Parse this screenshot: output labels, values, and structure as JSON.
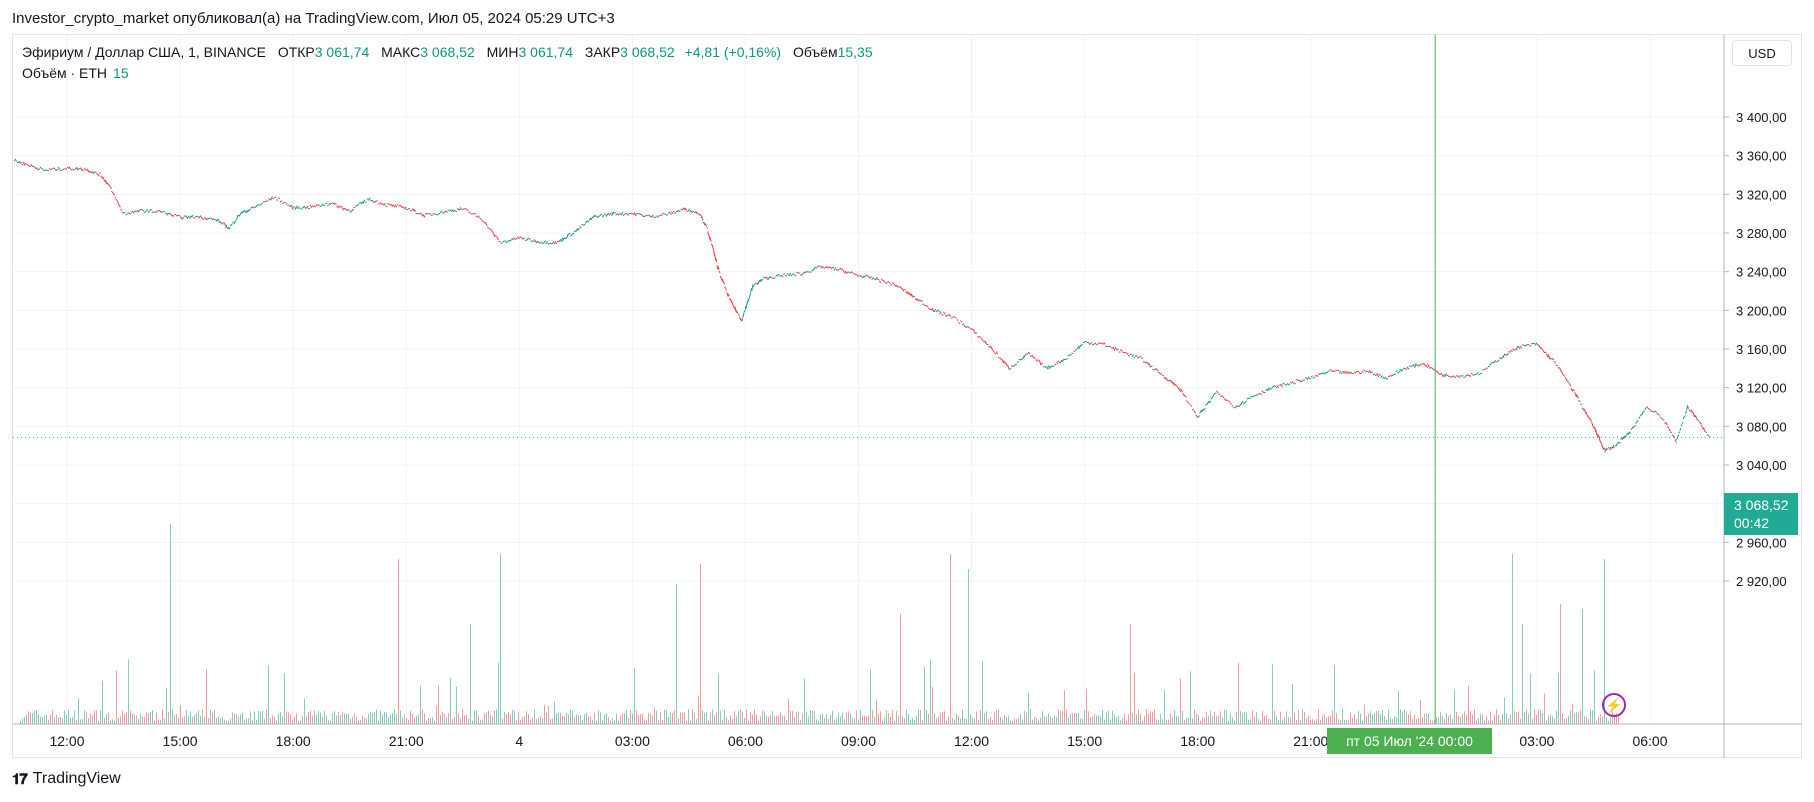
{
  "publisher_line": "Investor_crypto_market опубликовал(а) на TradingView.com, Июл 05, 2024 05:29 UTC+3",
  "legend": {
    "symbol": "Эфириум / Доллар США, 1, BINANCE",
    "open_label": "ОТКР",
    "open": "3 061,74",
    "high_label": "МАКС",
    "high": "3 068,52",
    "low_label": "МИН",
    "low": "3 061,74",
    "close_label": "ЗАКР",
    "close": "3 068,52",
    "change": "+4,81 (+0,16%)",
    "volume_label": "Объём",
    "volume": "15,35"
  },
  "volume_legend": {
    "label": "Объём · ETH",
    "value": "15"
  },
  "currency_button": "USD",
  "last_price": {
    "price": "3 068,52",
    "countdown": "00:42"
  },
  "crosshair_time_label": "пт 05 Июл '24   00:00",
  "logo_text": "TradingView",
  "colors": {
    "up": "#089981",
    "down": "#f23645",
    "price_badge": "#22ab94",
    "crosshair": "#4caf50"
  },
  "chart_data": {
    "type": "candlestick_line",
    "instrument": "ETH/USD",
    "timeframe": "1",
    "exchange": "BINANCE",
    "y_ticks": [
      3400,
      3360,
      3320,
      3280,
      3240,
      3200,
      3160,
      3120,
      3080,
      3040,
      3000,
      2960,
      2920
    ],
    "y_tick_labels": [
      "3 400,00",
      "3 360,00",
      "3 320,00",
      "3 280,00",
      "3 240,00",
      "3 200,00",
      "3 160,00",
      "3 120,00",
      "3 080,00",
      "3 040,00",
      "3 000,00",
      "2 960,00",
      "2 920,00"
    ],
    "x_ticks": [
      "12:00",
      "15:00",
      "18:00",
      "21:00",
      "4",
      "03:00",
      "06:00",
      "09:00",
      "12:00",
      "15:00",
      "18:00",
      "21:00",
      "03:00",
      "06:00"
    ],
    "x_hours_from_start": [
      0,
      3,
      6,
      9,
      12,
      15,
      18,
      21,
      24,
      27,
      30,
      33,
      39,
      42
    ],
    "price_path": [
      [
        -1.4,
        3355
      ],
      [
        -1.0,
        3350
      ],
      [
        -0.6,
        3345
      ],
      [
        0.0,
        3347
      ],
      [
        0.5,
        3346
      ],
      [
        0.9,
        3340
      ],
      [
        1.1,
        3330
      ],
      [
        1.5,
        3300
      ],
      [
        2.0,
        3303
      ],
      [
        2.5,
        3302
      ],
      [
        3.0,
        3296
      ],
      [
        3.5,
        3297
      ],
      [
        4.0,
        3293
      ],
      [
        4.3,
        3285
      ],
      [
        4.6,
        3300
      ],
      [
        5.0,
        3307
      ],
      [
        5.5,
        3317
      ],
      [
        6.0,
        3306
      ],
      [
        6.5,
        3307
      ],
      [
        7.0,
        3311
      ],
      [
        7.5,
        3303
      ],
      [
        8.0,
        3315
      ],
      [
        8.5,
        3309
      ],
      [
        9.0,
        3306
      ],
      [
        9.5,
        3298
      ],
      [
        10.0,
        3302
      ],
      [
        10.5,
        3305
      ],
      [
        11.0,
        3295
      ],
      [
        11.5,
        3270
      ],
      [
        12.0,
        3275
      ],
      [
        12.5,
        3271
      ],
      [
        13.0,
        3270
      ],
      [
        13.5,
        3282
      ],
      [
        14.0,
        3297
      ],
      [
        14.5,
        3300
      ],
      [
        15.0,
        3300
      ],
      [
        15.5,
        3297
      ],
      [
        16.0,
        3300
      ],
      [
        16.4,
        3305
      ],
      [
        16.8,
        3300
      ],
      [
        17.0,
        3283
      ],
      [
        17.3,
        3240
      ],
      [
        17.6,
        3210
      ],
      [
        17.9,
        3190
      ],
      [
        18.2,
        3225
      ],
      [
        18.5,
        3233
      ],
      [
        19.0,
        3236
      ],
      [
        19.5,
        3238
      ],
      [
        20.0,
        3245
      ],
      [
        20.5,
        3242
      ],
      [
        21.0,
        3236
      ],
      [
        21.5,
        3232
      ],
      [
        22.0,
        3226
      ],
      [
        22.5,
        3213
      ],
      [
        23.0,
        3200
      ],
      [
        23.5,
        3193
      ],
      [
        24.0,
        3180
      ],
      [
        24.5,
        3162
      ],
      [
        25.0,
        3140
      ],
      [
        25.5,
        3155
      ],
      [
        26.0,
        3140
      ],
      [
        26.5,
        3150
      ],
      [
        27.0,
        3167
      ],
      [
        27.5,
        3165
      ],
      [
        28.0,
        3157
      ],
      [
        28.5,
        3150
      ],
      [
        29.0,
        3135
      ],
      [
        29.5,
        3120
      ],
      [
        30.0,
        3090
      ],
      [
        30.5,
        3115
      ],
      [
        31.0,
        3100
      ],
      [
        31.5,
        3112
      ],
      [
        32.0,
        3120
      ],
      [
        32.5,
        3125
      ],
      [
        33.0,
        3130
      ],
      [
        33.5,
        3137
      ],
      [
        34.0,
        3135
      ],
      [
        34.5,
        3137
      ],
      [
        35.0,
        3130
      ],
      [
        35.5,
        3140
      ],
      [
        36.0,
        3145
      ],
      [
        36.5,
        3133
      ],
      [
        37.0,
        3132
      ],
      [
        37.5,
        3135
      ],
      [
        38.0,
        3150
      ],
      [
        38.5,
        3162
      ],
      [
        39.0,
        3165
      ],
      [
        39.5,
        3145
      ],
      [
        40.0,
        3115
      ],
      [
        40.5,
        3080
      ],
      [
        40.8,
        3055
      ],
      [
        41.1,
        3060
      ],
      [
        41.5,
        3075
      ],
      [
        41.9,
        3100
      ],
      [
        42.3,
        3090
      ],
      [
        42.7,
        3065
      ],
      [
        43.0,
        3100
      ],
      [
        43.3,
        3085
      ],
      [
        43.6,
        3068
      ]
    ]
  }
}
